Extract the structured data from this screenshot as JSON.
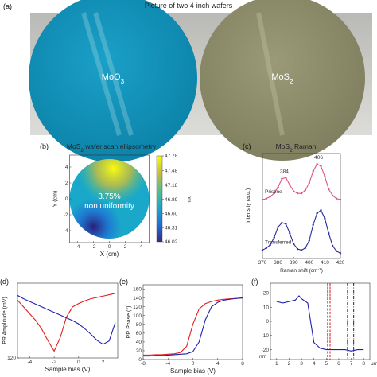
{
  "panel_a": {
    "label": "(a)",
    "title": "Picture of two 4-inch wafers",
    "wafers": [
      [
        "MoO",
        "3"
      ],
      [
        "MoS",
        "2"
      ]
    ]
  },
  "chart_data": [
    {
      "type": "heatmap",
      "label": "(b)",
      "title": [
        "MoS",
        "2",
        " wafer scan ellipsometry"
      ],
      "xlabel": "X (cm)",
      "ylabel": "Y (cm)",
      "xlim": [
        -5,
        5
      ],
      "ylim": [
        -5,
        5
      ],
      "xticks": [
        -4,
        -2,
        0,
        2,
        4
      ],
      "yticks": [
        -4,
        -2,
        0,
        2,
        4
      ],
      "clim": [
        46.02,
        47.78
      ],
      "cticks": [
        47.78,
        47.48,
        47.18,
        46.89,
        {
          "value": 46.6,
          "label": "46.60"
        },
        46.31,
        46.02
      ],
      "clabel": "nm",
      "colormap": [
        "#352a87",
        "#1f6fd8",
        "#19a8c9",
        "#55c08a",
        "#c8bd3b",
        "#f9fb0e"
      ],
      "annotation": [
        "3.75%",
        "non uniformity"
      ]
    },
    {
      "type": "line",
      "label": "(c)",
      "title": [
        "MoS",
        "2",
        " Raman"
      ],
      "xlabel": [
        "Raman shift (cm",
        "-1",
        ")"
      ],
      "ylabel": "Intensity (a.u.)",
      "xlim": [
        370,
        420
      ],
      "ylim": [
        0,
        1
      ],
      "xticks": [
        370,
        380,
        390,
        400,
        410,
        420
      ],
      "peaks": [
        384,
        406
      ],
      "x": [
        370,
        372.5,
        375,
        377.5,
        380,
        382.5,
        385,
        387.5,
        390,
        392.5,
        395,
        397.5,
        400,
        402.5,
        405,
        407.5,
        410,
        412.5,
        415,
        417.5,
        420
      ],
      "series": [
        {
          "name": "Pristine",
          "color": "#e0508a",
          "values": [
            0.56,
            0.57,
            0.59,
            0.62,
            0.68,
            0.76,
            0.77,
            0.7,
            0.64,
            0.62,
            0.62,
            0.65,
            0.72,
            0.83,
            0.9,
            0.88,
            0.78,
            0.66,
            0.6,
            0.57,
            0.56
          ]
        },
        {
          "name": "Transferred",
          "color": "#2a2a9a",
          "values": [
            0.08,
            0.1,
            0.13,
            0.2,
            0.3,
            0.34,
            0.33,
            0.24,
            0.14,
            0.09,
            0.08,
            0.1,
            0.17,
            0.32,
            0.43,
            0.46,
            0.38,
            0.24,
            0.12,
            0.07,
            0.05
          ]
        }
      ]
    },
    {
      "type": "line",
      "label": "(d)",
      "xlabel": "Sample bias (V)",
      "ylabel": "PR Amplitude (mV)",
      "xlim": [
        -5,
        3.2
      ],
      "ylim": [
        120,
        230
      ],
      "xticks": [
        -4,
        -2,
        0,
        2
      ],
      "yticks": [
        120
      ],
      "x": [
        -5,
        -4.5,
        -4,
        -3.5,
        -3,
        -2.5,
        -2,
        -1.5,
        -1,
        -0.5,
        0,
        0.5,
        1,
        1.5,
        2,
        2.5,
        3
      ],
      "series": [
        {
          "color": "#e02020",
          "values": [
            205,
            195,
            185,
            175,
            162,
            145,
            130,
            150,
            180,
            195,
            200,
            204,
            207,
            209,
            211,
            213,
            215
          ]
        },
        {
          "color": "#2020b0",
          "values": [
            212,
            207,
            203,
            199,
            195,
            191,
            187,
            183,
            179,
            175,
            170,
            163,
            155,
            146,
            140,
            145,
            172
          ]
        }
      ]
    },
    {
      "type": "line",
      "label": "(e)",
      "xlabel": "Sample bias (V)",
      "ylabel": "PR Phase (°)",
      "xlim": [
        -8,
        8
      ],
      "ylim": [
        0,
        170
      ],
      "xticks": [
        -8,
        -4,
        0,
        4,
        8
      ],
      "yticks": [
        0,
        20,
        40,
        60,
        80,
        100,
        120,
        140,
        160
      ],
      "x": [
        -8,
        -7,
        -6,
        -5,
        -4,
        -3,
        -2,
        -1,
        0,
        1,
        2,
        3,
        4,
        5,
        6,
        7,
        8
      ],
      "series": [
        {
          "color": "#e02020",
          "values": [
            10,
            10,
            11,
            11,
            12,
            13,
            16,
            30,
            80,
            115,
            127,
            132,
            135,
            137,
            138,
            139,
            140
          ]
        },
        {
          "color": "#2020b0",
          "values": [
            8,
            8,
            9,
            9,
            10,
            11,
            12,
            13,
            18,
            40,
            90,
            120,
            130,
            135,
            137,
            139,
            140
          ]
        }
      ]
    },
    {
      "type": "line",
      "label": "(f)",
      "ylabel": "nm",
      "xunit": "μm",
      "xlim": [
        0.5,
        8.5
      ],
      "ylim": [
        -27,
        27
      ],
      "xticks": [
        1,
        2,
        3,
        4,
        5,
        6,
        7,
        8
      ],
      "yticks": [
        20,
        10,
        0,
        -10,
        -20
      ],
      "x": [
        1,
        1.5,
        2,
        2.5,
        2.8,
        3,
        3.5,
        4,
        4.5,
        5,
        5.5,
        6,
        6.5,
        7,
        7.5,
        8
      ],
      "series": [
        {
          "color": "#2020b0",
          "values": [
            14,
            13,
            14,
            15,
            18,
            16,
            13,
            -15,
            -19,
            -20,
            -20,
            -20,
            -20,
            -21,
            -20,
            -20
          ]
        }
      ],
      "vlines": [
        {
          "x": 5.1,
          "color": "#d00000"
        },
        {
          "x": 5.3,
          "color": "#d00000"
        },
        {
          "x": 6.7,
          "color": "#111111"
        },
        {
          "x": 7.2,
          "color": "#111111"
        }
      ]
    }
  ]
}
